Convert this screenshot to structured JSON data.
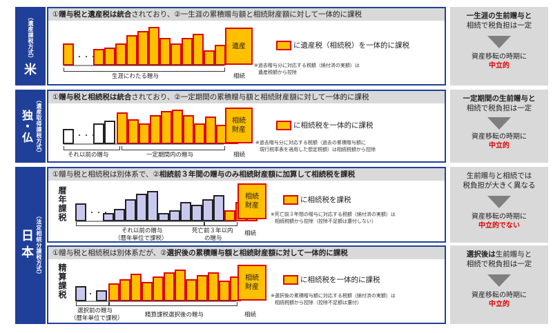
{
  "rows": [
    {
      "country": "米",
      "type": "（遺産課税方式）",
      "header": {
        "pre": "①",
        "b1": "贈与税と遺産税は統合",
        "m1": "されており、②一生涯の累積贈与額と相続財産額に対して一体的に課税",
        "b2": "",
        "m2": ""
      },
      "big": "遺産",
      "legend": "に遺産税（相続税）を一体的に課税",
      "note": [
        "※過去贈与分に対応する税額（納付済の実額）は",
        "遺産税額から控除"
      ],
      "labels": {
        "period": "生涯にわたる贈与",
        "end": "相続"
      },
      "right": {
        "top_b": "一生涯の生前贈与と",
        "top": "相続で税負担は一定",
        "bottom": "資産移転の時期に",
        "red": "中立的"
      },
      "bars_gray": [],
      "bars_orange": [
        30,
        22,
        24,
        30,
        42,
        48,
        54,
        38,
        30,
        38,
        44,
        20,
        28
      ]
    },
    {
      "country": "独・仏",
      "type": "（遺産取得課税方式）",
      "header": {
        "pre": "①",
        "b1": "贈与税と相続税は統合",
        "m1": "されており、②一定期間の累積贈与額と相続財産額に対して一体的に課税",
        "b2": "",
        "m2": ""
      },
      "big": "相続財産",
      "legend": "に相続税を一体的に課税",
      "note": [
        "※過去贈与分に対応する税額（過去の累積贈与額に",
        "現行税率表を適用した想定税額）は相続税額から控除"
      ],
      "labels": {
        "before": "それ以前の贈与",
        "period": "一定期間内の贈与",
        "end": "相続"
      },
      "right": {
        "top_b": "一定期間の生前贈与と",
        "top": "相続で税負担は一定",
        "bottom": "資産移転の時期に",
        "red": "中立的"
      },
      "bars_white": [
        20,
        28,
        32
      ],
      "bars_orange": [
        44,
        34,
        28,
        40,
        46,
        48,
        40,
        28,
        38,
        26,
        32
      ]
    },
    {
      "country": "日本",
      "type": "（法定相続分課税方式）",
      "header": {
        "pre": "①贈与税と相続税は別体系で、②",
        "b1": "相続前３年間の贈与のみ相続財産額に加算して相続税を課税",
        "m1": "",
        "b2": "",
        "m2": ""
      },
      "vlabel": "暦年課税",
      "big": "相続財産",
      "legend": "に相続税を課税",
      "note": [
        "※死亡前３年間の贈与に対応する税額（納付済の実額）は",
        "相続税額から控除（控除不足額は還付しない）"
      ],
      "labels": {
        "before": "それ以前の贈与",
        "before2": "（暦年単位で課税）",
        "period": "死亡前３年以内",
        "period2": "の贈与",
        "end": "相続"
      },
      "right": {
        "top": "生前贈与と相続では",
        "top2": "税負担が大きく異なる",
        "bottom": "資産移転の時期に",
        "red": "中立的でない"
      },
      "bars_gray": [
        24,
        10,
        16,
        30,
        38,
        42,
        10,
        14,
        26,
        22,
        30,
        36
      ],
      "bars_orange": [
        14,
        26,
        34
      ]
    },
    {
      "country": "",
      "type": "",
      "header": {
        "pre": "①贈与税と相続税は別体系だが、②",
        "b1": "選択後の累積贈与額と相続財産額に対して一体的に課税",
        "m1": "",
        "b2": "",
        "m2": ""
      },
      "vlabel": "精算課税",
      "big": "相続財産",
      "legend": "に相続税を一体的に課税",
      "note": [
        "※選択後の累積贈与額に対応する税額（納付済の実額）は",
        "相続税額から控除（控除不足額は還付）"
      ],
      "labels": {
        "before": "選択前の贈与",
        "before2": "（暦年単位で課税）",
        "period": "精算課税選択後の贈与",
        "end": "相続"
      },
      "right": {
        "top_b": "選択後は",
        "top": "生前贈与と",
        "top2": "相続で税負担は一定",
        "bottom": "資産移転の時期に",
        "red": "中立的"
      },
      "bars_gray": [
        20,
        14
      ],
      "bars_orange": [
        24,
        30,
        38,
        26,
        34,
        40,
        44,
        30,
        36,
        40,
        28,
        34
      ]
    }
  ],
  "colors": {
    "navy": "#1f3f99",
    "orange": "#ffc000",
    "red": "#e00000",
    "lav": "#c9c9f0",
    "gray": "#d9d9d9"
  }
}
